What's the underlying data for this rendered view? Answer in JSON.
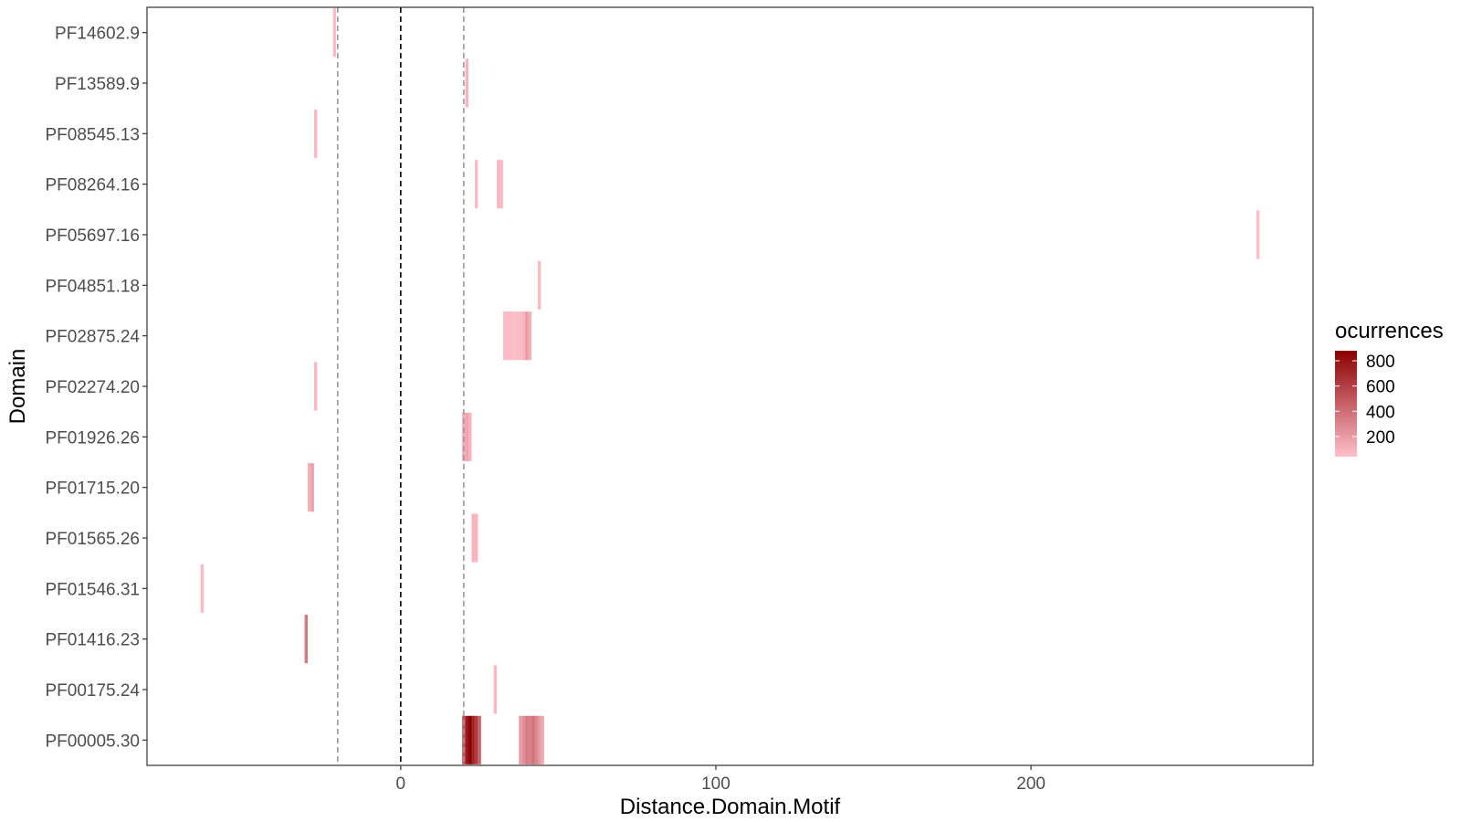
{
  "chart_data": {
    "type": "heatmap",
    "title": "",
    "xlabel": "Distance.Domain.Motif",
    "ylabel": "Domain",
    "xlim": [
      -80.5,
      289.5
    ],
    "x_ticks": [
      0,
      100,
      200
    ],
    "grid": false,
    "reference_lines": [
      {
        "x": 0,
        "style": "dashed",
        "color": "#000000"
      },
      {
        "x": -20,
        "style": "dashed",
        "color": "#999999"
      },
      {
        "x": 20,
        "style": "dashed",
        "color": "#999999"
      }
    ],
    "categories": [
      "PF14602.9",
      "PF13589.9",
      "PF08545.13",
      "PF08264.16",
      "PF05697.16",
      "PF04851.18",
      "PF02875.24",
      "PF02274.20",
      "PF01926.26",
      "PF01715.20",
      "PF01565.26",
      "PF01546.31",
      "PF01416.23",
      "PF00175.24",
      "PF00005.30"
    ],
    "legend": {
      "title": "ocurrences",
      "position": "right",
      "ticks": [
        200,
        400,
        600,
        800
      ],
      "range": [
        40,
        880
      ],
      "color_low": "#FFC0CB",
      "color_high": "#8B0000"
    },
    "cells": [
      {
        "domain": "PF14602.9",
        "x": -21,
        "n": 60
      },
      {
        "domain": "PF13589.9",
        "x": 21,
        "n": 90
      },
      {
        "domain": "PF08545.13",
        "x": -27,
        "n": 70
      },
      {
        "domain": "PF08264.16",
        "x": 24,
        "n": 60
      },
      {
        "domain": "PF08264.16",
        "x": 31,
        "n": 80
      },
      {
        "domain": "PF08264.16",
        "x": 32,
        "n": 60
      },
      {
        "domain": "PF05697.16",
        "x": 272,
        "n": 60
      },
      {
        "domain": "PF04851.18",
        "x": 44,
        "n": 70
      },
      {
        "domain": "PF02875.24",
        "x": 33,
        "n": 60
      },
      {
        "domain": "PF02875.24",
        "x": 34,
        "n": 70
      },
      {
        "domain": "PF02875.24",
        "x": 35,
        "n": 60
      },
      {
        "domain": "PF02875.24",
        "x": 36,
        "n": 50
      },
      {
        "domain": "PF02875.24",
        "x": 37,
        "n": 60
      },
      {
        "domain": "PF02875.24",
        "x": 38,
        "n": 70
      },
      {
        "domain": "PF02875.24",
        "x": 39,
        "n": 90
      },
      {
        "domain": "PF02875.24",
        "x": 40,
        "n": 200
      },
      {
        "domain": "PF02875.24",
        "x": 41,
        "n": 120
      },
      {
        "domain": "PF02274.20",
        "x": -27,
        "n": 70
      },
      {
        "domain": "PF01926.26",
        "x": 20,
        "n": 120
      },
      {
        "domain": "PF01926.26",
        "x": 21,
        "n": 160
      },
      {
        "domain": "PF01926.26",
        "x": 22,
        "n": 100
      },
      {
        "domain": "PF01715.20",
        "x": -29,
        "n": 120
      },
      {
        "domain": "PF01715.20",
        "x": -28,
        "n": 170
      },
      {
        "domain": "PF01565.26",
        "x": 23,
        "n": 100
      },
      {
        "domain": "PF01565.26",
        "x": 24,
        "n": 90
      },
      {
        "domain": "PF01546.31",
        "x": -63,
        "n": 60
      },
      {
        "domain": "PF01416.23",
        "x": -30,
        "n": 350
      },
      {
        "domain": "PF00175.24",
        "x": 30,
        "n": 70
      },
      {
        "domain": "PF00005.30",
        "x": 20,
        "n": 520
      },
      {
        "domain": "PF00005.30",
        "x": 21,
        "n": 780
      },
      {
        "domain": "PF00005.30",
        "x": 22,
        "n": 880
      },
      {
        "domain": "PF00005.30",
        "x": 23,
        "n": 720
      },
      {
        "domain": "PF00005.30",
        "x": 24,
        "n": 620
      },
      {
        "domain": "PF00005.30",
        "x": 25,
        "n": 450
      },
      {
        "domain": "PF00005.30",
        "x": 38,
        "n": 200
      },
      {
        "domain": "PF00005.30",
        "x": 39,
        "n": 260
      },
      {
        "domain": "PF00005.30",
        "x": 40,
        "n": 350
      },
      {
        "domain": "PF00005.30",
        "x": 41,
        "n": 320
      },
      {
        "domain": "PF00005.30",
        "x": 42,
        "n": 380
      },
      {
        "domain": "PF00005.30",
        "x": 43,
        "n": 300
      },
      {
        "domain": "PF00005.30",
        "x": 44,
        "n": 220
      },
      {
        "domain": "PF00005.30",
        "x": 45,
        "n": 140
      }
    ]
  }
}
